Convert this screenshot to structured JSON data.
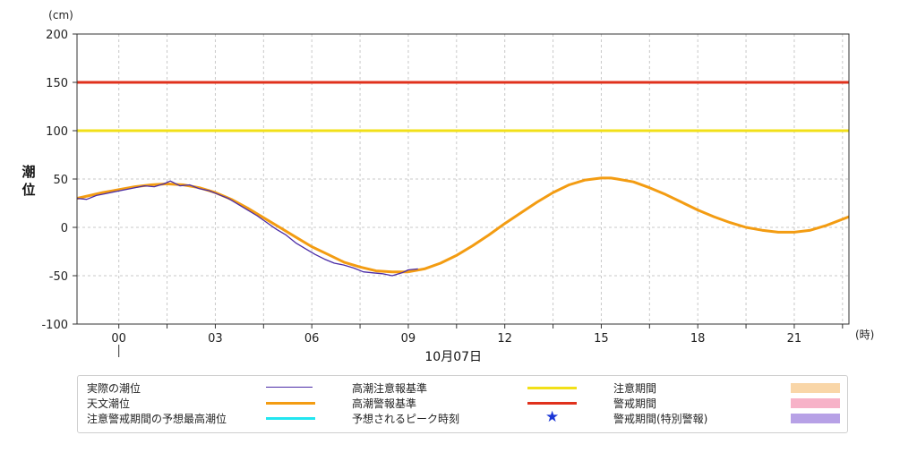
{
  "chart_data": {
    "type": "line",
    "ylabel": "潮位",
    "yunit": "(cm)",
    "xunit": "(時)",
    "date_label": "10月07日",
    "ylim": [
      -100,
      200
    ],
    "yticks": [
      -100,
      -50,
      0,
      50,
      100,
      150,
      200
    ],
    "xlim_hours": [
      -1.3,
      22.7
    ],
    "xticks": [
      {
        "h": 0,
        "label": "00"
      },
      {
        "h": 3,
        "label": "03"
      },
      {
        "h": 6,
        "label": "06"
      },
      {
        "h": 9,
        "label": "09"
      },
      {
        "h": 12,
        "label": "12"
      },
      {
        "h": 15,
        "label": "15"
      },
      {
        "h": 18,
        "label": "18"
      },
      {
        "h": 21,
        "label": "21"
      }
    ],
    "grid": true,
    "series": [
      {
        "name": "天文潮位",
        "color": "#f39c12",
        "x": [
          -1.3,
          -0.5,
          0.0,
          0.5,
          1.0,
          1.5,
          2.0,
          2.5,
          3.0,
          3.5,
          4.0,
          4.5,
          5.0,
          5.5,
          6.0,
          6.5,
          7.0,
          7.5,
          8.0,
          8.5,
          9.0,
          9.5,
          10.0,
          10.5,
          11.0,
          11.5,
          12.0,
          12.5,
          13.0,
          13.5,
          14.0,
          14.5,
          15.0,
          15.3,
          15.5,
          16.0,
          16.5,
          17.0,
          17.5,
          18.0,
          18.5,
          19.0,
          19.5,
          20.0,
          20.5,
          21.0,
          21.5,
          22.0,
          22.7
        ],
        "y": [
          30,
          36,
          39,
          42,
          44,
          45,
          44,
          41,
          36,
          29,
          20,
          10,
          0,
          -10,
          -20,
          -28,
          -36,
          -41,
          -45,
          -46,
          -46,
          -43,
          -37,
          -29,
          -19,
          -8,
          4,
          15,
          26,
          36,
          44,
          49,
          51,
          51,
          50,
          47,
          41,
          34,
          26,
          18,
          11,
          5,
          0,
          -3,
          -5,
          -5,
          -3,
          2,
          11
        ]
      },
      {
        "name": "実際の潮位",
        "color": "#4a2ca6",
        "x": [
          -1.3,
          -1.0,
          -0.7,
          -0.4,
          -0.1,
          0.2,
          0.5,
          0.8,
          1.1,
          1.4,
          1.6,
          1.9,
          2.2,
          2.5,
          2.8,
          3.1,
          3.4,
          3.7,
          4.0,
          4.3,
          4.6,
          4.9,
          5.2,
          5.5,
          5.8,
          6.1,
          6.4,
          6.7,
          7.0,
          7.3,
          7.6,
          7.9,
          8.2,
          8.5,
          8.8,
          9.0,
          9.3
        ],
        "y": [
          30,
          29,
          33,
          35,
          37,
          39,
          41,
          43,
          42,
          45,
          48,
          43,
          44,
          40,
          38,
          34,
          30,
          24,
          18,
          12,
          5,
          -2,
          -8,
          -16,
          -22,
          -28,
          -33,
          -37,
          -39,
          -42,
          -46,
          -47,
          -48,
          -50,
          -47,
          -44,
          -43
        ]
      },
      {
        "name": "高潮注意報基準",
        "color": "#f2e018",
        "y_const": 100
      },
      {
        "name": "高潮警報基準",
        "color": "#e0311c",
        "y_const": 150
      }
    ]
  },
  "legend": {
    "items": [
      {
        "label": "実際の潮位",
        "kind": "line",
        "color": "#4a2ca6"
      },
      {
        "label": "天文潮位",
        "kind": "line",
        "color": "#f39c12"
      },
      {
        "label": "注意警戒期間の予想最高潮位",
        "kind": "line",
        "color": "#22e6f0"
      },
      {
        "label": "高潮注意報基準",
        "kind": "line",
        "color": "#f2e018"
      },
      {
        "label": "高潮警報基準",
        "kind": "line",
        "color": "#e0311c"
      },
      {
        "label": "予想されるピーク時刻",
        "kind": "star",
        "color": "#1a35d6"
      },
      {
        "label": "注意期間",
        "kind": "box",
        "color": "#f9d6a8"
      },
      {
        "label": "警戒期間",
        "kind": "box",
        "color": "#f7b2c8"
      },
      {
        "label": "警戒期間(特別警報)",
        "kind": "box",
        "color": "#b7a1e6"
      }
    ]
  }
}
